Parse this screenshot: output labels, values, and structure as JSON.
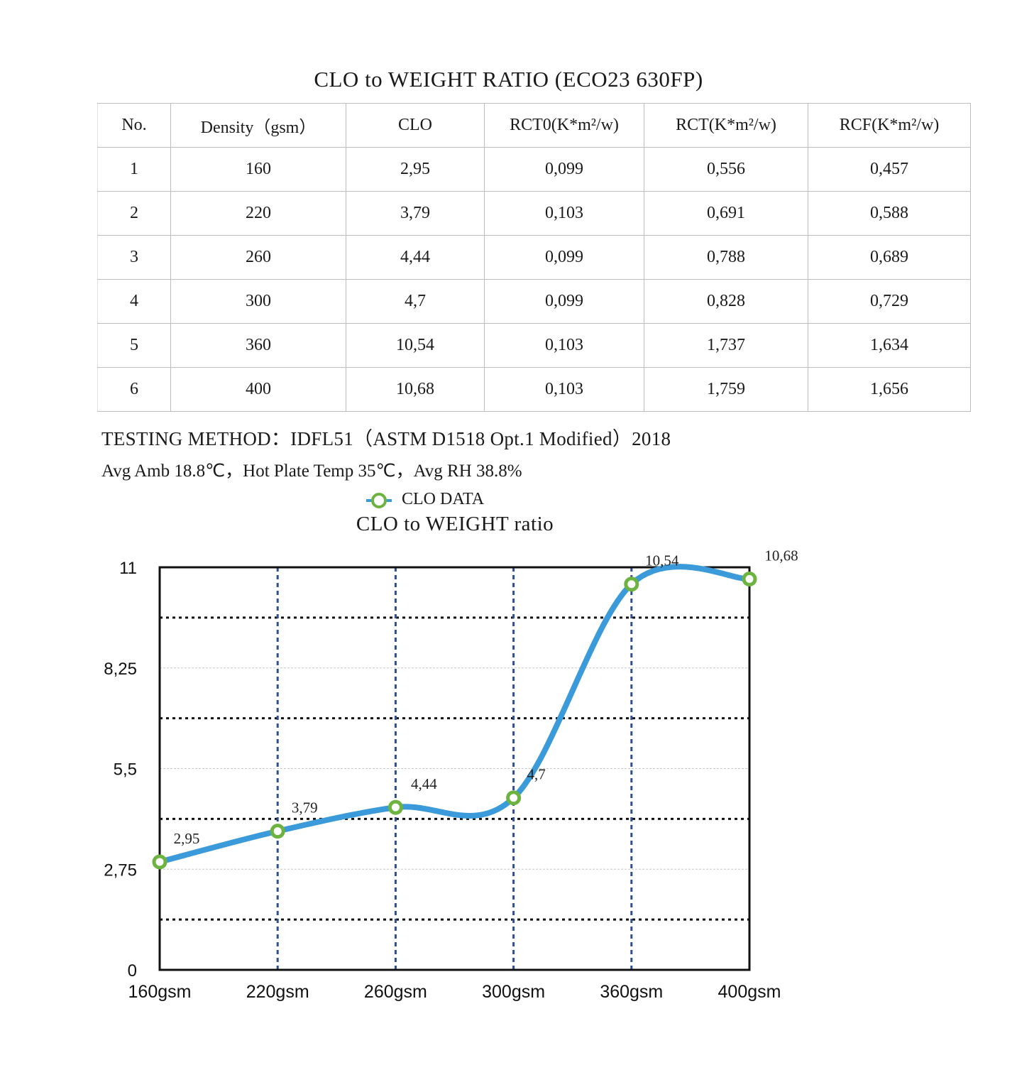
{
  "title": "CLO to WEIGHT RATIO  (ECO23 630FP)",
  "table": {
    "headers": [
      "No.",
      "Density（gsm）",
      "CLO",
      "RCT0(K*m²/w)",
      "RCT(K*m²/w)",
      "RCF(K*m²/w)"
    ],
    "rows": [
      [
        "1",
        "160",
        "2,95",
        "0,099",
        "0,556",
        "0,457"
      ],
      [
        "2",
        "220",
        "3,79",
        "0,103",
        "0,691",
        "0,588"
      ],
      [
        "3",
        "260",
        "4,44",
        "0,099",
        "0,788",
        "0,689"
      ],
      [
        "4",
        "300",
        "4,7",
        "0,099",
        "0,828",
        "0,729"
      ],
      [
        "5",
        "360",
        "10,54",
        "0,103",
        "1,737",
        "1,634"
      ],
      [
        "6",
        "400",
        "10,68",
        "0,103",
        "1,759",
        "1,656"
      ]
    ]
  },
  "testing_method": "TESTING METHOD：IDFL51（ASTM D1518 Opt.1 Modified）2018",
  "conditions": "Avg Amb 18.8℃，Hot Plate Temp 35℃，Avg RH 38.8%",
  "colors": {
    "line": "#3b9ad9",
    "marker": "#6db33f",
    "vgrid": "#2f4f8f"
  },
  "chart_data": {
    "type": "line",
    "title": "CLO to WEIGHT ratio",
    "legend": {
      "entry": "CLO DATA",
      "placement": "top"
    },
    "categories": [
      "160gsm",
      "220gsm",
      "260gsm",
      "300gsm",
      "360gsm",
      "400gsm"
    ],
    "series": [
      {
        "name": "CLO DATA",
        "values": [
          2.95,
          3.79,
          4.44,
          4.7,
          10.54,
          10.68
        ],
        "labels": [
          "2,95",
          "3,79",
          "4,44",
          "4,7",
          "10,54",
          "10,68"
        ]
      }
    ],
    "yticks": [
      0,
      2.75,
      5.5,
      8.25,
      11
    ],
    "ytick_labels": [
      "0",
      "2,75",
      "5,5",
      "8,25",
      "11"
    ],
    "ylim": [
      0,
      11
    ],
    "grid": true
  }
}
